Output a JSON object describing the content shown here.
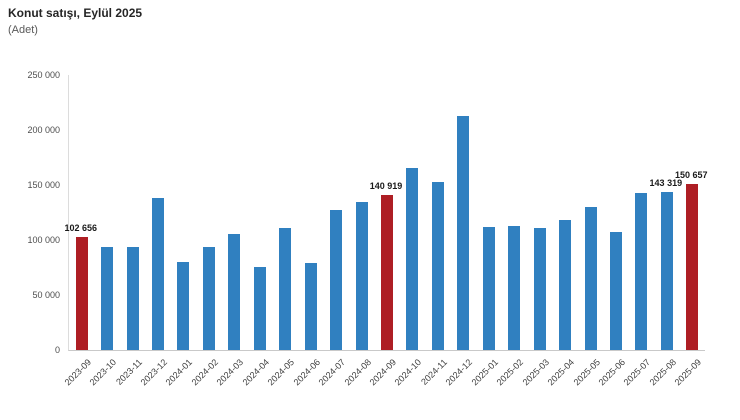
{
  "colors": {
    "bar_blue": "#3080C0",
    "bar_red_highlight": "#AE1E24",
    "axis_line": "#d0d0d0",
    "title_text": "#262626",
    "tick_text": "#4d4d4d"
  },
  "chart_data": {
    "type": "bar",
    "title": "Konut satışı, Eylül 2025",
    "unit_label": "(Adet)",
    "xlabel": "",
    "ylabel": "",
    "ylim": [
      0,
      250000
    ],
    "y_ticks": [
      0,
      50000,
      100000,
      150000,
      200000,
      250000
    ],
    "y_tick_labels": [
      "0",
      "50 000",
      "100 000",
      "150 000",
      "200 000",
      "250 000"
    ],
    "grid": false,
    "legend": false,
    "categories": [
      "2023-09",
      "2023-10",
      "2023-11",
      "2023-12",
      "2024-01",
      "2024-02",
      "2024-03",
      "2024-04",
      "2024-05",
      "2024-06",
      "2024-07",
      "2024-08",
      "2024-09",
      "2024-10",
      "2024-11",
      "2024-12",
      "2025-01",
      "2025-02",
      "2025-03",
      "2025-04",
      "2025-05",
      "2025-06",
      "2025-07",
      "2025-08",
      "2025-09"
    ],
    "values": [
      102656,
      93761,
      93514,
      138577,
      80308,
      93902,
      105476,
      75569,
      110588,
      79313,
      127088,
      134155,
      140919,
      165138,
      153014,
      212637,
      112173,
      112818,
      110795,
      118359,
      130025,
      107723,
      142858,
      143319,
      150657
    ],
    "highlight_indices": [
      0,
      12,
      24
    ],
    "labeled_points": [
      {
        "index": 0,
        "label": "102 656"
      },
      {
        "index": 12,
        "label": "140 919"
      },
      {
        "index": 23,
        "label": "143 319"
      },
      {
        "index": 24,
        "label": "150 657"
      }
    ]
  }
}
